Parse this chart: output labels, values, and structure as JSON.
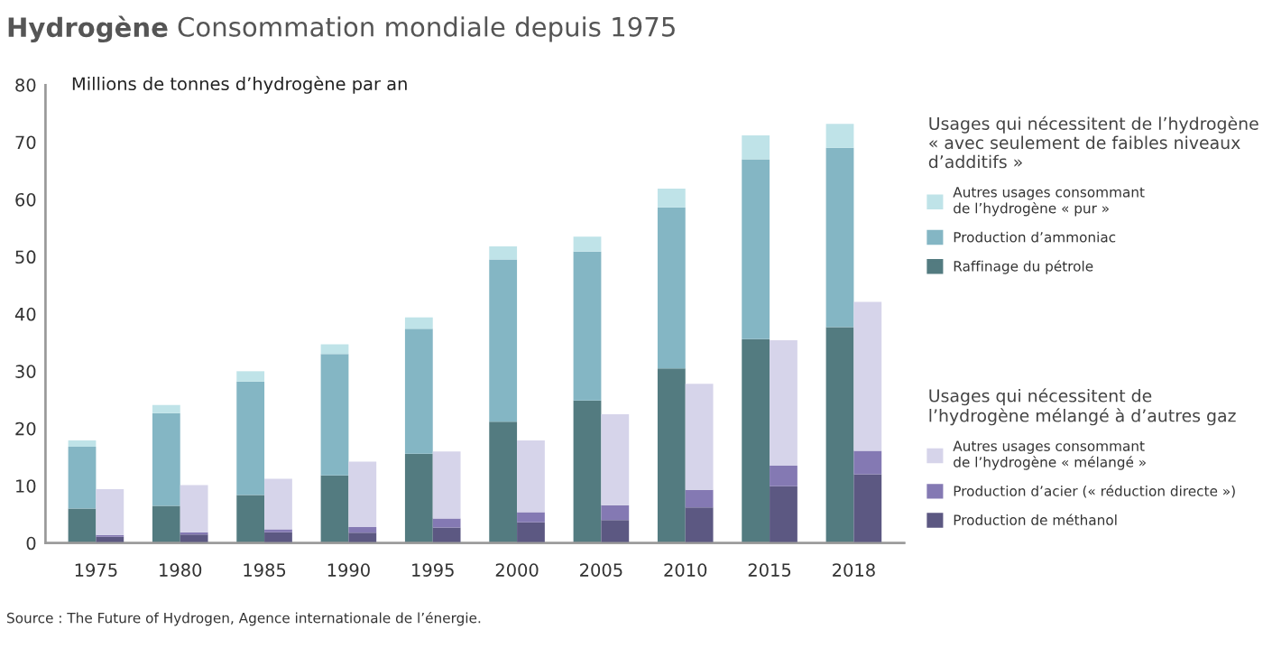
{
  "chart_data": [
    {
      "type": "bar",
      "stacked": true,
      "title": "Hydrogène",
      "subtitle": "Consommation mondiale depuis 1975",
      "ylabel": "Millions de tonnes d’hydrogène par an",
      "legend_title": "Usages qui nécessitent de l’hydrogène\n« avec seulement de faibles niveaux\nd’additifs »",
      "annotations": [
        "Source : The Future of Hydrogen, Agence internationale de l’énergie."
      ],
      "categories": [
        "1975",
        "1980",
        "1985",
        "1990",
        "1995",
        "2000",
        "2005",
        "2010",
        "2015",
        "2018"
      ],
      "ylim": [
        0,
        80
      ],
      "yticks": [
        0,
        10,
        20,
        30,
        40,
        50,
        60,
        70,
        80
      ],
      "grid": false,
      "legend": "right",
      "series": [
        {
          "name": "Raffinage du pétrole",
          "color": "#537b80",
          "values": [
            6,
            6.5,
            8.4,
            11.8,
            15.6,
            21.2,
            24.9,
            30.5,
            35.6,
            37.7
          ]
        },
        {
          "name": "Production d’ammoniac",
          "color": "#84b6c4",
          "values": [
            10.8,
            16.2,
            19.8,
            21.2,
            21.8,
            28.3,
            26.0,
            28.1,
            31.4,
            31.3
          ]
        },
        {
          "name": "Autres usages consommant\nde l’hydrogène « pur »",
          "color": "#bfe3e8",
          "values": [
            1.1,
            1.4,
            1.8,
            1.7,
            2.0,
            2.3,
            2.6,
            3.3,
            4.2,
            4.2
          ]
        }
      ]
    },
    {
      "type": "bar",
      "stacked": true,
      "legend_title": "Usages qui nécessitent de\nl’hydrogène mélangé à d’autres gaz",
      "categories": [
        "1975",
        "1980",
        "1985",
        "1990",
        "1995",
        "2000",
        "2005",
        "2010",
        "2015",
        "2018"
      ],
      "ylim": [
        0,
        80
      ],
      "tick_labels": false,
      "grid": false,
      "legend": "right",
      "series": [
        {
          "name": "Production de méthanol",
          "color": "#5c5882",
          "values": [
            1.1,
            1.5,
            1.9,
            1.8,
            2.7,
            3.6,
            4.0,
            6.2,
            9.9,
            12.0
          ]
        },
        {
          "name": "Production d’acier (« réduction directe »)",
          "color": "#8479b3",
          "values": [
            0.3,
            0.4,
            0.5,
            1.0,
            1.6,
            1.8,
            2.6,
            3.1,
            3.6,
            4.1
          ]
        },
        {
          "name": "Autres usages consommant\nde l’hydrogène « mélangé »",
          "color": "#d6d4ea",
          "values": [
            8.0,
            8.2,
            8.8,
            11.4,
            11.7,
            12.5,
            15.9,
            18.5,
            21.9,
            26.0
          ]
        }
      ]
    }
  ]
}
